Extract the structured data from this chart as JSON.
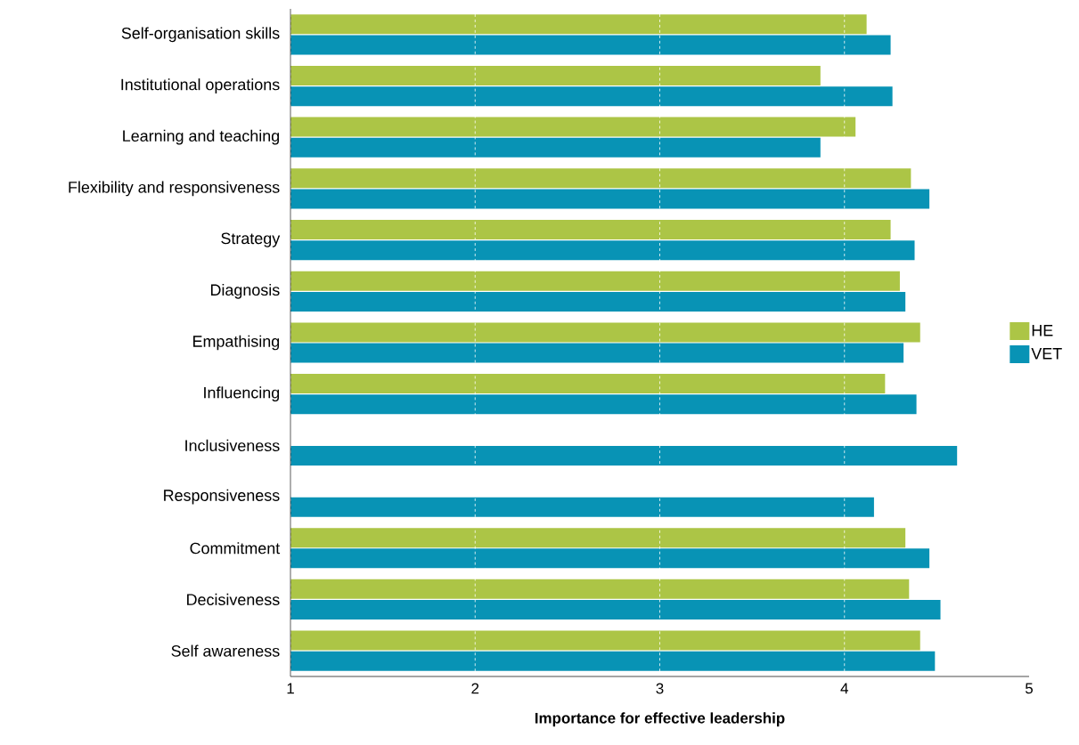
{
  "chart_data": {
    "type": "bar",
    "orientation": "horizontal",
    "xlabel": "Importance for effective leadership",
    "categories": [
      "Self-organisation skills",
      "Institutional operations",
      "Learning and teaching",
      "Flexibility and responsiveness",
      "Strategy",
      "Diagnosis",
      "Empathising",
      "Influencing",
      "Inclusiveness",
      "Responsiveness",
      "Commitment",
      "Decisiveness",
      "Self awareness"
    ],
    "series": [
      {
        "name": "HE",
        "color": "#acc546",
        "values": [
          4.12,
          3.87,
          4.06,
          4.36,
          4.25,
          4.3,
          4.41,
          4.22,
          null,
          null,
          4.33,
          4.35,
          4.41
        ]
      },
      {
        "name": "VET",
        "color": "#0893b5",
        "values": [
          4.25,
          4.26,
          3.87,
          4.46,
          4.38,
          4.33,
          4.32,
          4.39,
          4.61,
          4.16,
          4.46,
          4.52,
          4.49
        ]
      }
    ],
    "xlim": [
      1,
      5
    ],
    "xticks": [
      1,
      2,
      3,
      4,
      5
    ],
    "grid": "x",
    "legend": "right"
  }
}
